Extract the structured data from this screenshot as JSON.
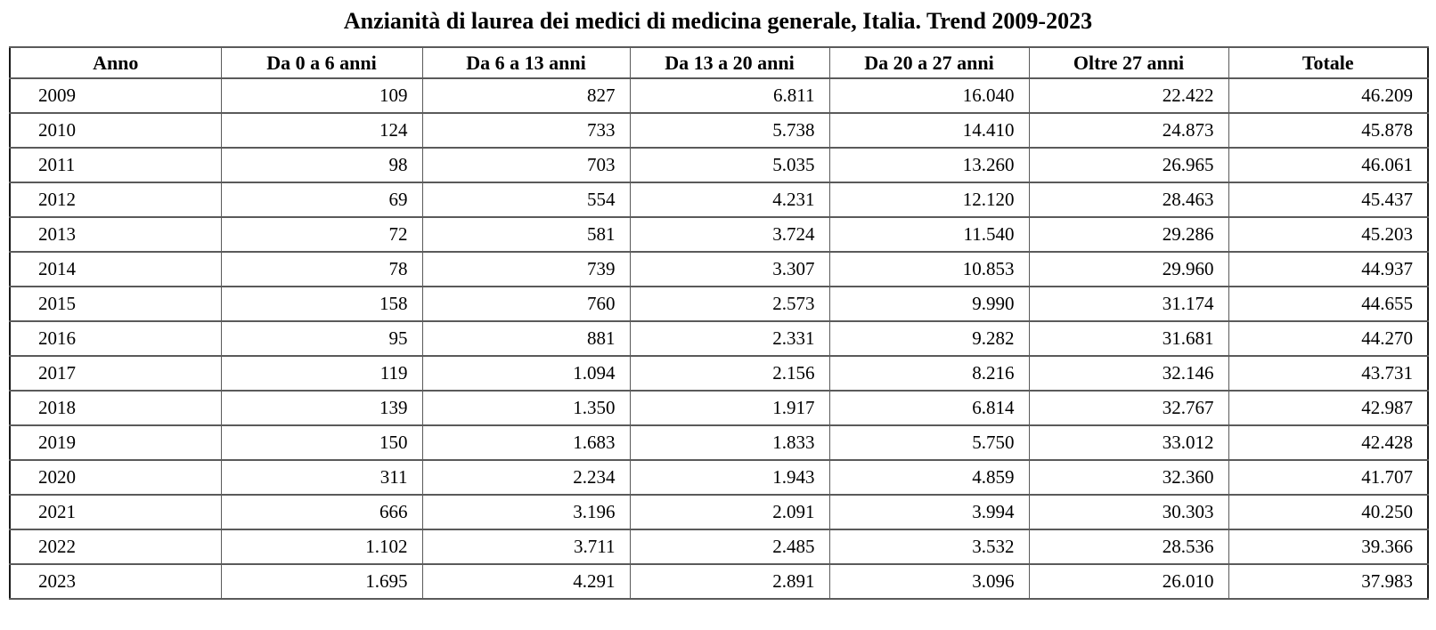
{
  "title": "Anzianità di laurea dei medici di medicina generale, Italia. Trend 2009-2023",
  "table": {
    "columns": [
      "Anno",
      "Da 0 a 6 anni",
      "Da 6 a 13 anni",
      "Da 13 a 20 anni",
      "Da 20 a 27 anni",
      "Oltre 27 anni",
      "Totale"
    ],
    "rows": [
      [
        "2009",
        "109",
        "827",
        "6.811",
        "16.040",
        "22.422",
        "46.209"
      ],
      [
        "2010",
        "124",
        "733",
        "5.738",
        "14.410",
        "24.873",
        "45.878"
      ],
      [
        "2011",
        "98",
        "703",
        "5.035",
        "13.260",
        "26.965",
        "46.061"
      ],
      [
        "2012",
        "69",
        "554",
        "4.231",
        "12.120",
        "28.463",
        "45.437"
      ],
      [
        "2013",
        "72",
        "581",
        "3.724",
        "11.540",
        "29.286",
        "45.203"
      ],
      [
        "2014",
        "78",
        "739",
        "3.307",
        "10.853",
        "29.960",
        "44.937"
      ],
      [
        "2015",
        "158",
        "760",
        "2.573",
        "9.990",
        "31.174",
        "44.655"
      ],
      [
        "2016",
        "95",
        "881",
        "2.331",
        "9.282",
        "31.681",
        "44.270"
      ],
      [
        "2017",
        "119",
        "1.094",
        "2.156",
        "8.216",
        "32.146",
        "43.731"
      ],
      [
        "2018",
        "139",
        "1.350",
        "1.917",
        "6.814",
        "32.767",
        "42.987"
      ],
      [
        "2019",
        "150",
        "1.683",
        "1.833",
        "5.750",
        "33.012",
        "42.428"
      ],
      [
        "2020",
        "311",
        "2.234",
        "1.943",
        "4.859",
        "32.360",
        "41.707"
      ],
      [
        "2021",
        "666",
        "3.196",
        "2.091",
        "3.994",
        "30.303",
        "40.250"
      ],
      [
        "2022",
        "1.102",
        "3.711",
        "2.485",
        "3.532",
        "28.536",
        "39.366"
      ],
      [
        "2023",
        "1.695",
        "4.291",
        "2.891",
        "3.096",
        "26.010",
        "37.983"
      ]
    ]
  },
  "chart_data": {
    "type": "table",
    "title": "Anzianità di laurea dei medici di medicina generale, Italia. Trend 2009-2023",
    "columns": [
      "Anno",
      "Da 0 a 6 anni",
      "Da 6 a 13 anni",
      "Da 13 a 20 anni",
      "Da 20 a 27 anni",
      "Oltre 27 anni",
      "Totale"
    ],
    "rows": [
      [
        2009,
        109,
        827,
        6811,
        16040,
        22422,
        46209
      ],
      [
        2010,
        124,
        733,
        5738,
        14410,
        24873,
        45878
      ],
      [
        2011,
        98,
        703,
        5035,
        13260,
        26965,
        46061
      ],
      [
        2012,
        69,
        554,
        4231,
        12120,
        28463,
        45437
      ],
      [
        2013,
        72,
        581,
        3724,
        11540,
        29286,
        45203
      ],
      [
        2014,
        78,
        739,
        3307,
        10853,
        29960,
        44937
      ],
      [
        2015,
        158,
        760,
        2573,
        9990,
        31174,
        44655
      ],
      [
        2016,
        95,
        881,
        2331,
        9282,
        31681,
        44270
      ],
      [
        2017,
        119,
        1094,
        2156,
        8216,
        32146,
        43731
      ],
      [
        2018,
        139,
        1350,
        1917,
        6814,
        32767,
        42987
      ],
      [
        2019,
        150,
        1683,
        1833,
        5750,
        33012,
        42428
      ],
      [
        2020,
        311,
        2234,
        1943,
        4859,
        32360,
        41707
      ],
      [
        2021,
        666,
        3196,
        2091,
        3994,
        30303,
        40250
      ],
      [
        2022,
        1102,
        3711,
        2485,
        3532,
        28536,
        39366
      ],
      [
        2023,
        1695,
        4291,
        2891,
        3096,
        26010,
        37983
      ]
    ],
    "number_format": "it-IT thousands separator (.)",
    "layout": {
      "title_position": "top-center",
      "grid": true,
      "header_bold": true
    }
  },
  "style": {
    "background_color": "#ffffff",
    "text_color": "#000000",
    "outer_border_color": "#1a1a1a",
    "inner_border_color": "#5a5a5a"
  }
}
